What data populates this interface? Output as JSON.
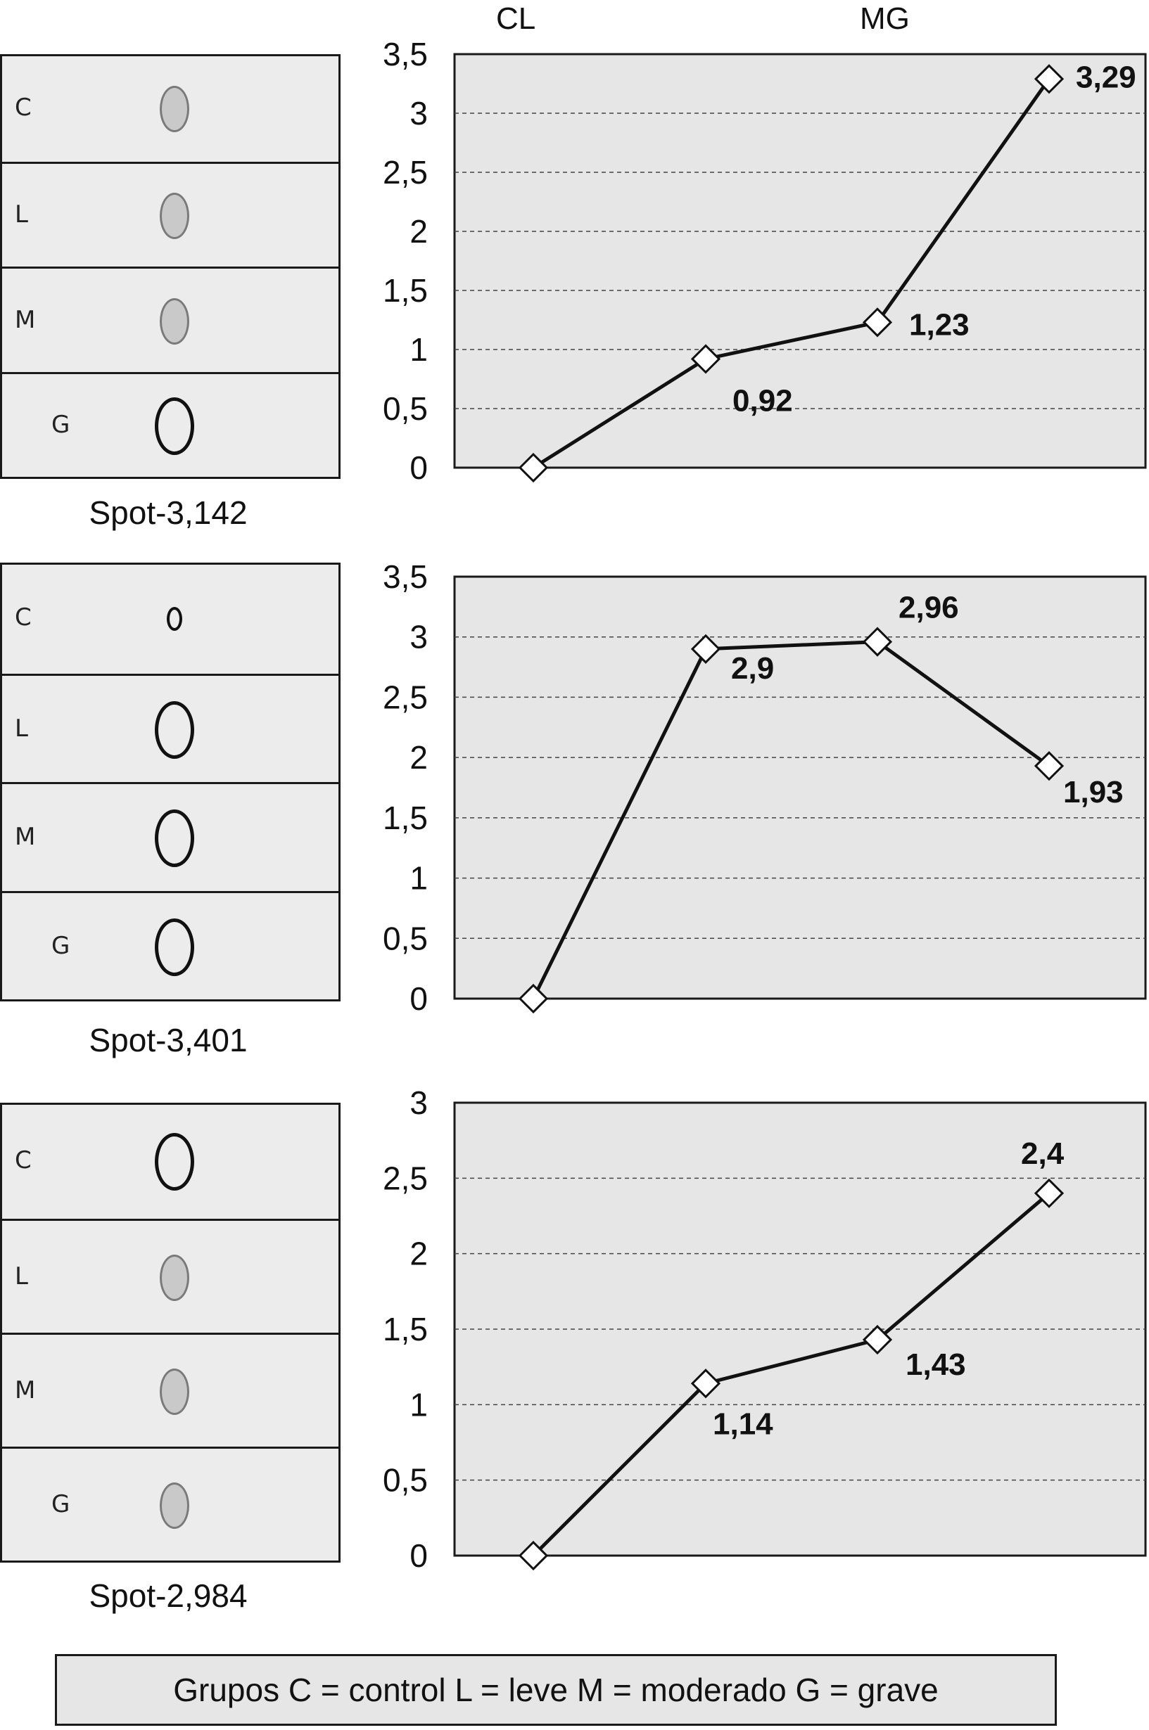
{
  "header": {
    "label_left": "CL",
    "label_right": "MG"
  },
  "lane_labels": [
    "C",
    "L",
    "M",
    "G"
  ],
  "panels": [
    {
      "caption": "Spot-3,142",
      "spot_intensity": [
        "faint",
        "faint",
        "faint",
        "strong"
      ]
    },
    {
      "caption": "Spot-3,401",
      "spot_intensity": [
        "small",
        "strong",
        "strong",
        "strong"
      ]
    },
    {
      "caption": "Spot-2,984",
      "spot_intensity": [
        "strong",
        "faint",
        "faint",
        "faint"
      ]
    }
  ],
  "chart_data": [
    {
      "type": "line",
      "y_ticks": [
        "0",
        "0,5",
        "1",
        "1,5",
        "2",
        "2,5",
        "3",
        "3,5"
      ],
      "ylim": [
        0,
        3.5
      ],
      "grid": true,
      "series": [
        {
          "values": [
            0,
            0.92,
            1.23,
            3.29
          ],
          "data_labels": [
            "",
            "0,92",
            "1,23",
            "3,29"
          ]
        }
      ]
    },
    {
      "type": "line",
      "y_ticks": [
        "0",
        "0,5",
        "1",
        "1,5",
        "2",
        "2,5",
        "3",
        "3,5"
      ],
      "ylim": [
        0,
        3.5
      ],
      "grid": true,
      "series": [
        {
          "values": [
            0,
            2.9,
            2.96,
            1.93
          ],
          "data_labels": [
            "",
            "2,9",
            "2,96",
            "1,93"
          ]
        }
      ]
    },
    {
      "type": "line",
      "y_ticks": [
        "0",
        "0,5",
        "1",
        "1,5",
        "2",
        "2,5",
        "3"
      ],
      "ylim": [
        0,
        3
      ],
      "grid": true,
      "series": [
        {
          "values": [
            0,
            1.14,
            1.43,
            2.4
          ],
          "data_labels": [
            "",
            "1,14",
            "1,43",
            "2,4"
          ]
        }
      ]
    }
  ],
  "legend": {
    "text": "Grupos C = control L = leve M = moderado G = grave"
  },
  "colors": {
    "plot_bg": "#e6e6e6",
    "line": "#111111",
    "marker_fill": "#ffffff",
    "blot_bg": "#ececec"
  }
}
